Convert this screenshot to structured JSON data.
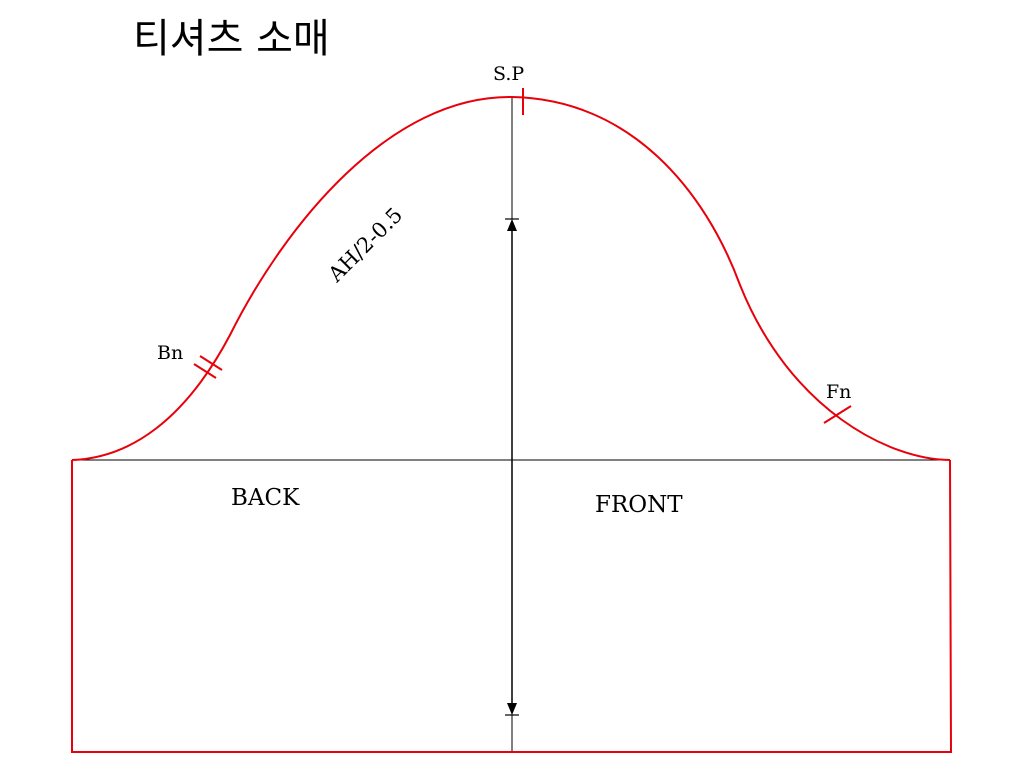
{
  "title": "티셔츠 소매",
  "labels": {
    "shoulder_point": "S.P",
    "back_notch": "Bn",
    "front_notch": "Fn",
    "cap_height_formula": "AH/2-0.5",
    "back": "BACK",
    "front": "FRONT"
  },
  "colors": {
    "pattern_line": "#e8000b",
    "guide_line": "#000000",
    "background": "#ffffff"
  }
}
